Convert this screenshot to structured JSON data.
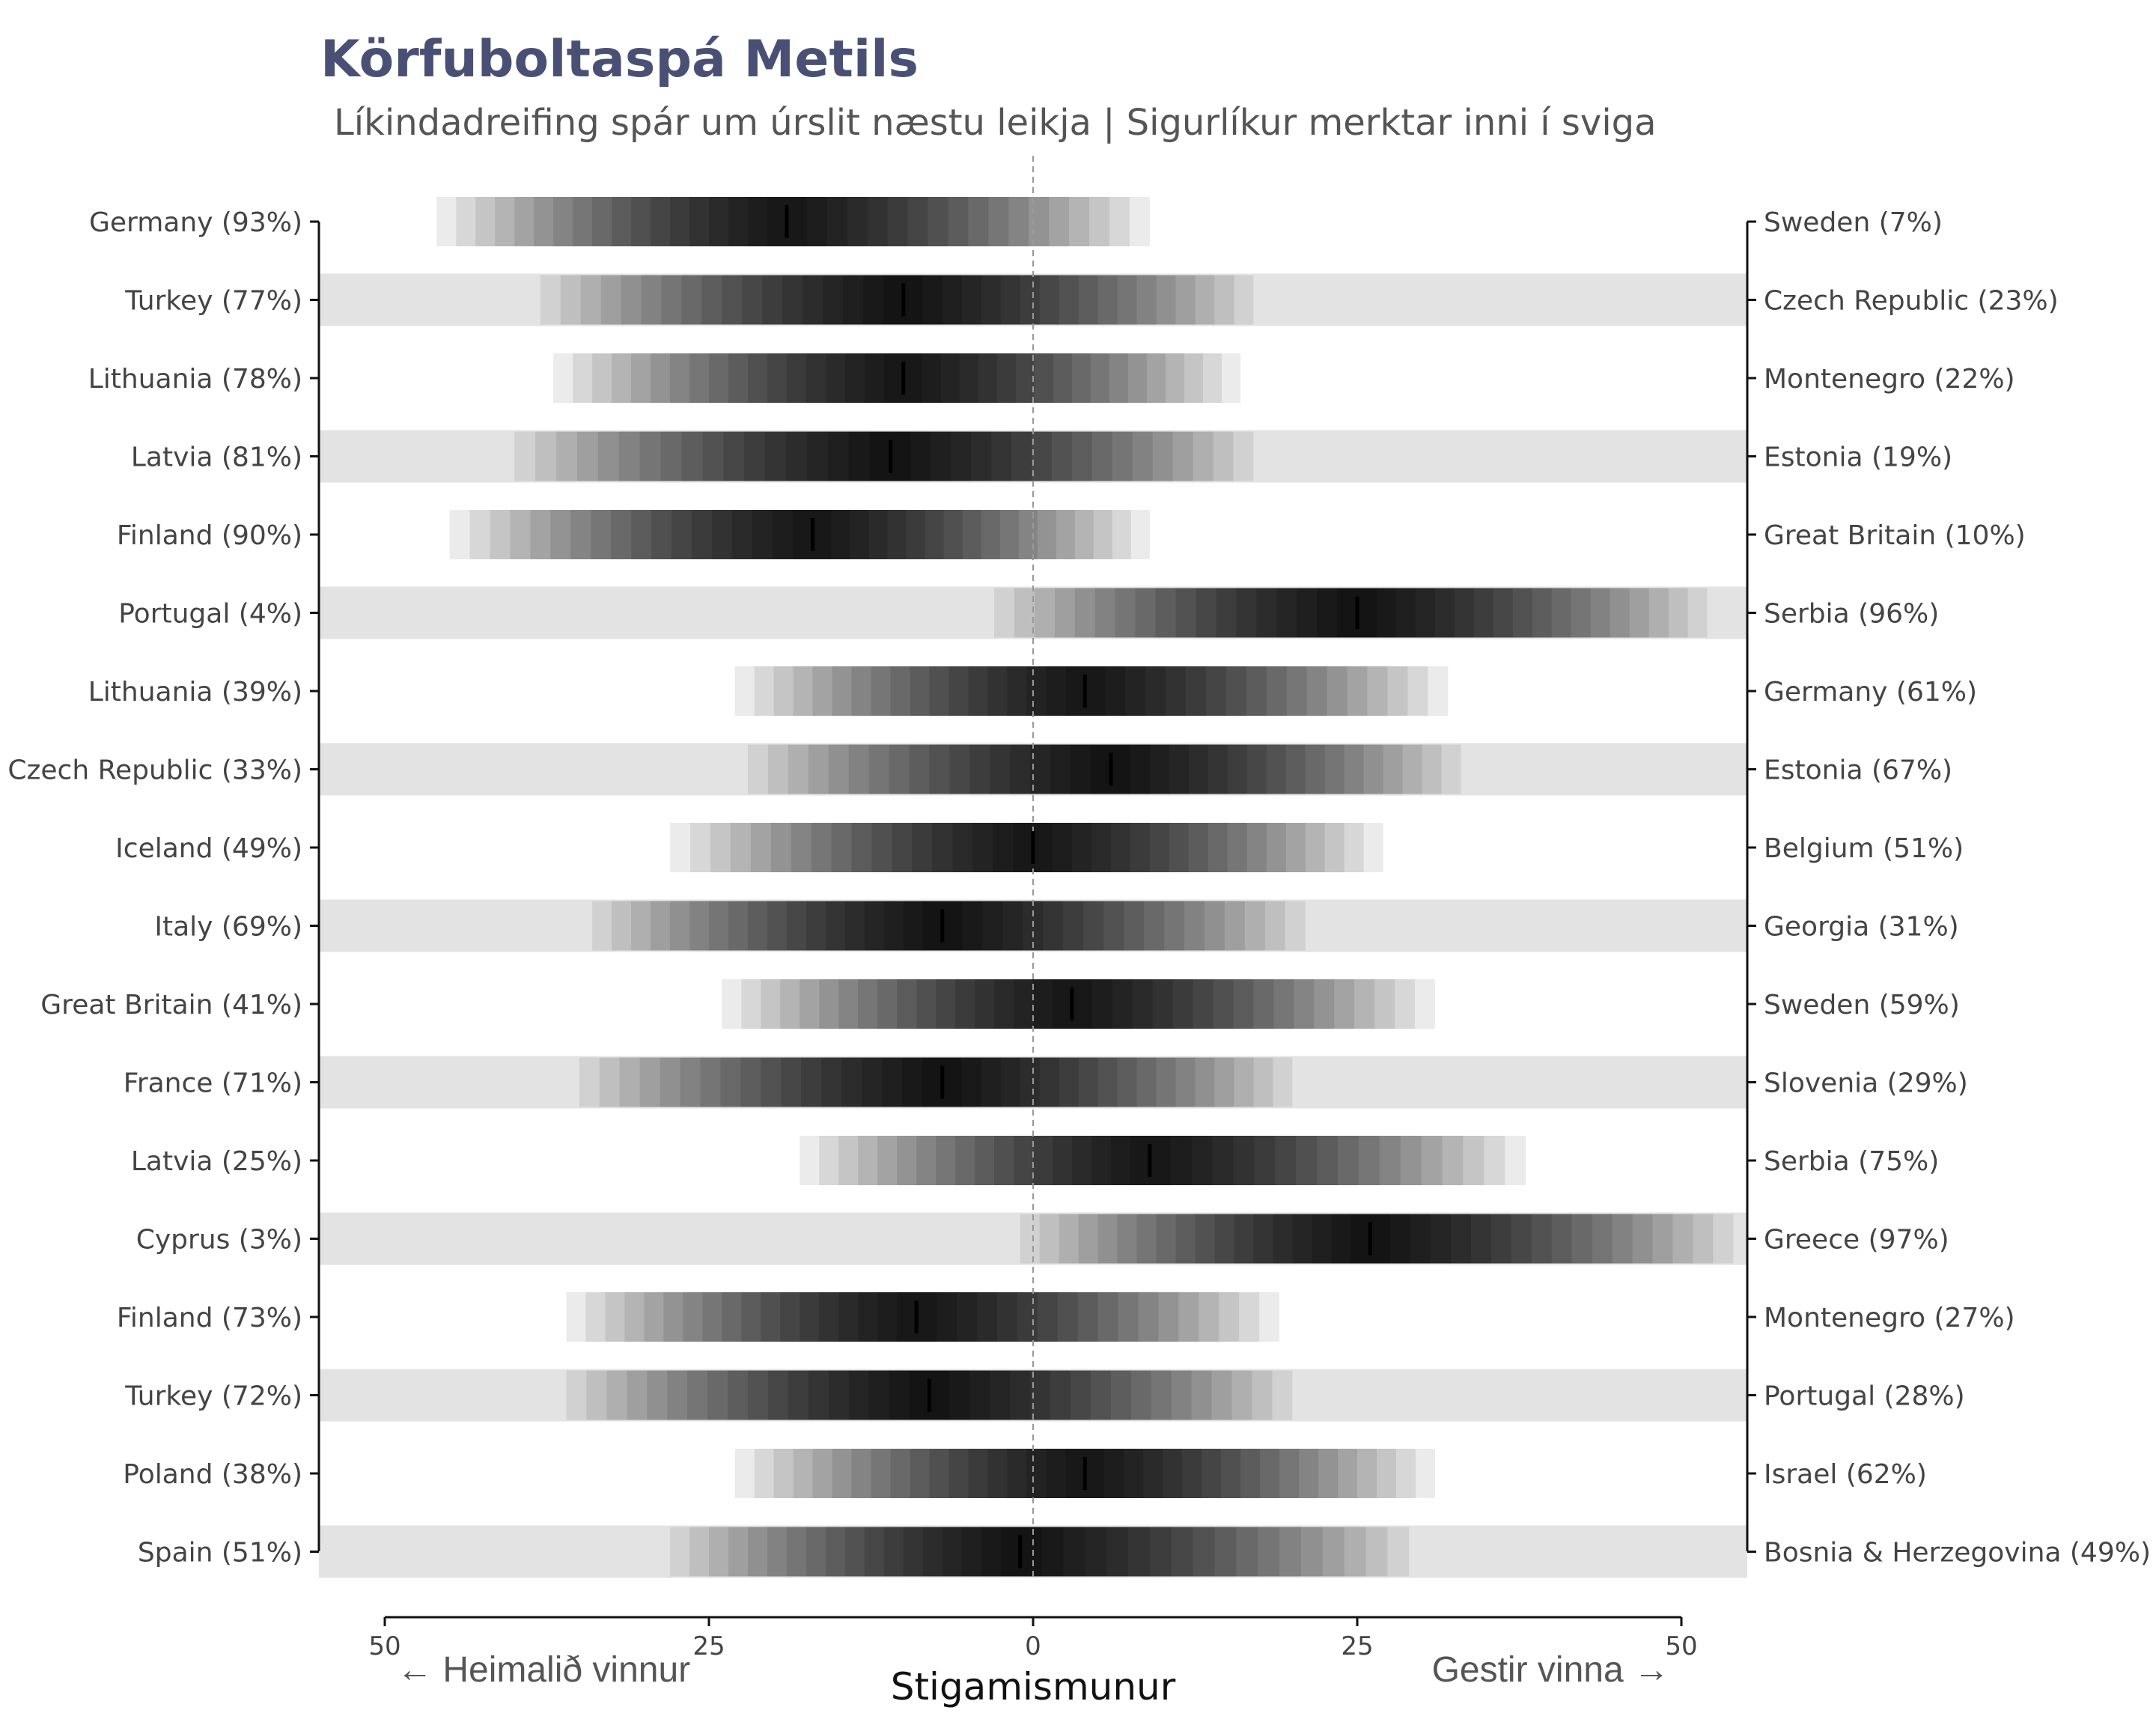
{
  "chart_data": {
    "type": "interval",
    "title": "Körfuboltaspá Metils",
    "subtitle": "Líkindadreifing spár um úrslit næstu leikja | Sigurlíkur merktar inni í sviga",
    "xlabel": "Stigamismunur",
    "xlim": [
      -50,
      50
    ],
    "xticks": [
      {
        "value": -50,
        "label": "50"
      },
      {
        "value": -25,
        "label": "25"
      },
      {
        "value": 0,
        "label": "0"
      },
      {
        "value": 25,
        "label": "25"
      },
      {
        "value": 50,
        "label": "50"
      }
    ],
    "home_arrow_label": "← Heimalið vinnur",
    "away_arrow_label": "Gestir vinna →",
    "games": [
      {
        "home": "Germany (93%)",
        "away": "Sweden (7%)",
        "median": -19,
        "lo": -46,
        "hi": 9
      },
      {
        "home": "Turkey (77%)",
        "away": "Czech Republic (23%)",
        "median": -10,
        "lo": -38,
        "hi": 17
      },
      {
        "home": "Lithuania (78%)",
        "away": "Montenegro (22%)",
        "median": -10,
        "lo": -37,
        "hi": 16
      },
      {
        "home": "Latvia (81%)",
        "away": "Estonia (19%)",
        "median": -11,
        "lo": -40,
        "hi": 17
      },
      {
        "home": "Finland (90%)",
        "away": "Great Britain (10%)",
        "median": -17,
        "lo": -45,
        "hi": 9
      },
      {
        "home": "Portugal (4%)",
        "away": "Serbia (96%)",
        "median": 25,
        "lo": -3,
        "hi": 52
      },
      {
        "home": "Lithuania (39%)",
        "away": "Germany (61%)",
        "median": 4,
        "lo": -23,
        "hi": 32
      },
      {
        "home": "Czech Republic (33%)",
        "away": "Estonia (67%)",
        "median": 6,
        "lo": -22,
        "hi": 33
      },
      {
        "home": "Iceland (49%)",
        "away": "Belgium (51%)",
        "median": 0,
        "lo": -28,
        "hi": 27
      },
      {
        "home": "Italy (69%)",
        "away": "Georgia (31%)",
        "median": -7,
        "lo": -34,
        "hi": 21
      },
      {
        "home": "Great Britain (41%)",
        "away": "Sweden (59%)",
        "median": 3,
        "lo": -24,
        "hi": 31
      },
      {
        "home": "France (71%)",
        "away": "Slovenia (29%)",
        "median": -7,
        "lo": -35,
        "hi": 20
      },
      {
        "home": "Latvia (25%)",
        "away": "Serbia (75%)",
        "median": 9,
        "lo": -18,
        "hi": 38
      },
      {
        "home": "Cyprus (3%)",
        "away": "Greece (97%)",
        "median": 26,
        "lo": -1,
        "hi": 54
      },
      {
        "home": "Finland (73%)",
        "away": "Montenegro (27%)",
        "median": -9,
        "lo": -36,
        "hi": 19
      },
      {
        "home": "Turkey (72%)",
        "away": "Portugal (28%)",
        "median": -8,
        "lo": -36,
        "hi": 20
      },
      {
        "home": "Poland (38%)",
        "away": "Israel (62%)",
        "median": 4,
        "lo": -23,
        "hi": 31
      },
      {
        "home": "Spain (51%)",
        "away": "Bosnia & Herzegovina (49%)",
        "median": -1,
        "lo": -28,
        "hi": 29
      }
    ]
  }
}
